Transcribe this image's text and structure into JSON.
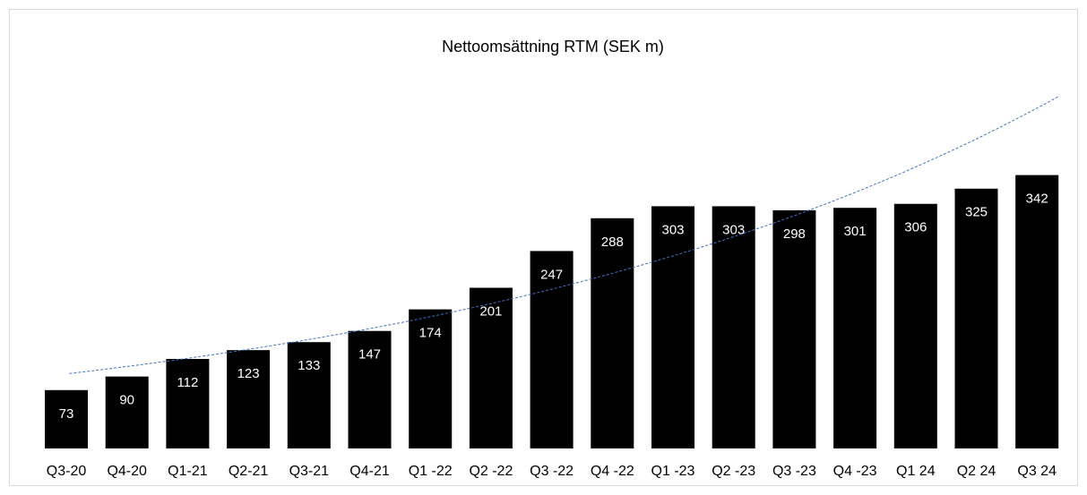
{
  "chart_data": {
    "type": "bar",
    "title": "Nettoomsättning RTM (SEK m)",
    "categories": [
      "Q3-20",
      "Q4-20",
      "Q1-21",
      "Q2-21",
      "Q3-21",
      "Q4-21",
      "Q1 -22",
      "Q2 -22",
      "Q3 -22",
      "Q4 -22",
      "Q1 -23",
      "Q2 -23",
      "Q3 -23",
      "Q4 -23",
      "Q1 24",
      "Q2 24",
      "Q3 24"
    ],
    "values": [
      73,
      90,
      112,
      123,
      133,
      147,
      174,
      201,
      247,
      288,
      303,
      303,
      298,
      301,
      306,
      325,
      342
    ],
    "color": "#000000",
    "trendline": "exponential",
    "trendline_color": "#4472c4"
  }
}
